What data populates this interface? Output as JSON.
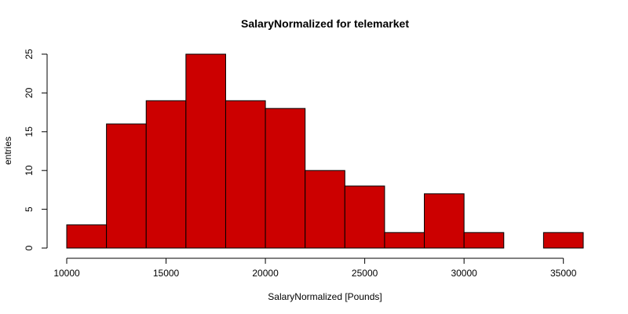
{
  "chart_data": {
    "type": "bar",
    "title": "SalaryNormalized for telemarket",
    "xlabel": "SalaryNormalized [Pounds]",
    "ylabel": "entries",
    "bin_edges": [
      10000,
      12000,
      14000,
      16000,
      18000,
      20000,
      22000,
      24000,
      26000,
      28000,
      30000,
      32000,
      34000,
      36000
    ],
    "values": [
      3,
      16,
      19,
      25,
      19,
      18,
      10,
      8,
      2,
      7,
      2,
      0,
      2
    ],
    "xlim": [
      10000,
      36000
    ],
    "ylim": [
      0,
      25
    ],
    "x_ticks": [
      10000,
      15000,
      20000,
      25000,
      30000,
      35000
    ],
    "y_ticks": [
      0,
      5,
      10,
      15,
      20,
      25
    ],
    "bar_color": "#cc0000",
    "grid": false,
    "legend": "none"
  }
}
